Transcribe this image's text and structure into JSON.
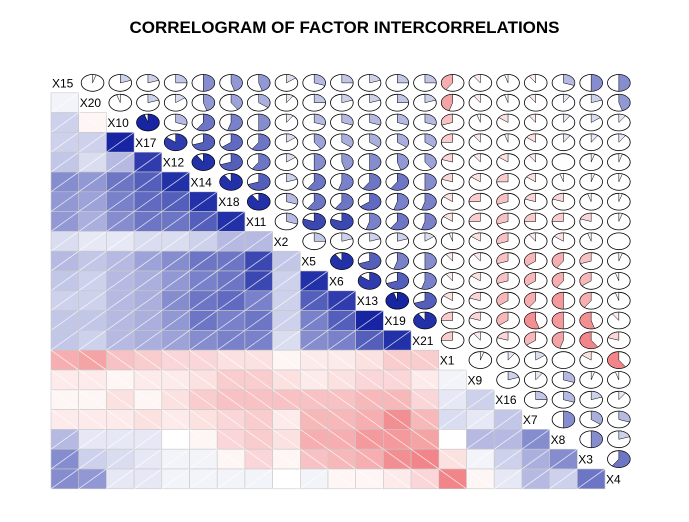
{
  "chart_data": {
    "type": "heatmap",
    "title": "CORRELOGRAM OF FACTOR INTERCORRELATIONS",
    "lower_panel": "shade",
    "upper_panel": "pie",
    "diagonal": "variable names",
    "colors": {
      "positive": "#0b1a9e",
      "negative": "#e8343a",
      "grid": "#c8c8c8"
    },
    "variables": [
      "X15",
      "X20",
      "X10",
      "X17",
      "X12",
      "X14",
      "X18",
      "X11",
      "X2",
      "X5",
      "X6",
      "X13",
      "X19",
      "X21",
      "X1",
      "X9",
      "X16",
      "X7",
      "X8",
      "X3",
      "X4"
    ],
    "matrix": [
      [
        1,
        0.05,
        0.2,
        0.2,
        0.25,
        0.5,
        0.45,
        0.45,
        0.15,
        0.3,
        0.25,
        0.2,
        0.25,
        0.25,
        -0.4,
        -0.1,
        -0.05,
        -0.1,
        0.3,
        0.5,
        0.5
      ],
      [
        0.05,
        1,
        -0.05,
        0.2,
        0.15,
        0.45,
        0.4,
        0.35,
        0.1,
        0.25,
        0.2,
        0.2,
        0.25,
        0.2,
        -0.45,
        -0.1,
        -0.05,
        -0.1,
        0.1,
        0.2,
        0.45
      ],
      [
        0.2,
        -0.05,
        1,
        0.95,
        0.3,
        0.6,
        0.55,
        0.5,
        0.1,
        0.3,
        0.3,
        0.3,
        0.3,
        0.3,
        -0.3,
        -0.05,
        -0.15,
        -0.1,
        0.1,
        0.15,
        0.1
      ],
      [
        0.2,
        0.2,
        0.95,
        1,
        0.85,
        0.7,
        0.65,
        0.6,
        0.15,
        0.4,
        0.35,
        0.35,
        0.35,
        0.35,
        -0.25,
        -0.1,
        -0.05,
        -0.15,
        0.1,
        0.1,
        0.1
      ],
      [
        0.25,
        0.15,
        0.3,
        0.85,
        1,
        0.9,
        0.7,
        0.6,
        0.15,
        0.5,
        0.45,
        0.5,
        0.45,
        0.4,
        -0.2,
        -0.1,
        -0.15,
        -0.1,
        0,
        0.05,
        0.05
      ],
      [
        0.5,
        0.45,
        0.6,
        0.7,
        0.9,
        1,
        0.9,
        0.7,
        0.2,
        0.6,
        0.55,
        0.6,
        0.6,
        0.5,
        -0.2,
        -0.15,
        -0.25,
        -0.15,
        -0.05,
        0.05,
        0.05
      ],
      [
        0.45,
        0.4,
        0.55,
        0.65,
        0.7,
        0.9,
        1,
        0.9,
        0.3,
        0.6,
        0.6,
        0.65,
        0.55,
        0.55,
        -0.15,
        -0.25,
        -0.3,
        -0.2,
        -0.2,
        -0.05,
        0.05
      ],
      [
        0.45,
        0.35,
        0.5,
        0.6,
        0.6,
        0.7,
        0.9,
        1,
        0.3,
        0.8,
        0.8,
        0.55,
        0.6,
        0.55,
        -0.15,
        -0.25,
        -0.3,
        -0.25,
        -0.25,
        -0.2,
        0.05
      ],
      [
        0.15,
        0.1,
        0.1,
        0.15,
        0.15,
        0.2,
        0.3,
        0.3,
        1,
        0.25,
        0.2,
        0.2,
        0.2,
        0.15,
        -0.05,
        -0.15,
        -0.3,
        -0.1,
        -0.15,
        -0.05,
        0
      ],
      [
        0.3,
        0.25,
        0.3,
        0.4,
        0.5,
        0.6,
        0.6,
        0.8,
        0.25,
        1,
        0.9,
        0.7,
        0.55,
        0.5,
        -0.1,
        -0.1,
        -0.3,
        -0.35,
        -0.4,
        -0.3,
        0.05
      ],
      [
        0.25,
        0.2,
        0.3,
        0.35,
        0.45,
        0.55,
        0.6,
        0.8,
        0.2,
        0.9,
        1,
        0.85,
        0.7,
        0.55,
        -0.1,
        -0.15,
        -0.3,
        -0.35,
        -0.4,
        -0.35,
        -0.05
      ],
      [
        0.2,
        0.2,
        0.3,
        0.35,
        0.5,
        0.6,
        0.65,
        0.55,
        0.2,
        0.7,
        0.85,
        1,
        0.95,
        0.7,
        -0.15,
        -0.2,
        -0.35,
        -0.4,
        -0.5,
        -0.4,
        -0.05
      ],
      [
        0.25,
        0.25,
        0.3,
        0.35,
        0.45,
        0.6,
        0.55,
        0.6,
        0.2,
        0.55,
        0.7,
        0.95,
        1,
        0.9,
        -0.25,
        -0.2,
        -0.35,
        -0.55,
        -0.5,
        -0.55,
        -0.1
      ],
      [
        0.25,
        0.2,
        0.3,
        0.35,
        0.4,
        0.5,
        0.55,
        0.55,
        0.15,
        0.5,
        0.55,
        0.7,
        0.9,
        1,
        -0.25,
        -0.1,
        -0.2,
        -0.35,
        -0.45,
        -0.6,
        -0.2
      ],
      [
        -0.4,
        -0.45,
        -0.3,
        -0.25,
        -0.2,
        -0.2,
        -0.15,
        -0.15,
        -0.05,
        -0.1,
        -0.1,
        -0.15,
        -0.25,
        -0.25,
        1,
        0.05,
        0.1,
        0.15,
        0,
        -0.15,
        -0.6
      ],
      [
        -0.1,
        -0.1,
        -0.05,
        -0.1,
        -0.1,
        -0.15,
        -0.25,
        -0.25,
        -0.15,
        -0.1,
        -0.15,
        -0.2,
        -0.2,
        -0.1,
        0.05,
        1,
        0.2,
        0.1,
        0.3,
        0.05,
        -0.05
      ],
      [
        -0.05,
        -0.05,
        -0.15,
        -0.05,
        -0.15,
        -0.25,
        -0.3,
        -0.3,
        -0.3,
        -0.3,
        -0.3,
        -0.35,
        -0.35,
        -0.2,
        0.1,
        0.2,
        1,
        0.25,
        0.3,
        0.2,
        0.1
      ],
      [
        -0.1,
        -0.1,
        -0.1,
        -0.15,
        -0.1,
        -0.15,
        -0.2,
        -0.25,
        -0.1,
        -0.35,
        -0.35,
        -0.4,
        -0.55,
        -0.35,
        0.15,
        0.1,
        0.25,
        1,
        0.5,
        0.35,
        0.3
      ],
      [
        0.3,
        0.1,
        0.1,
        0.1,
        0,
        -0.05,
        -0.2,
        -0.25,
        -0.15,
        -0.4,
        -0.4,
        -0.5,
        -0.5,
        -0.45,
        0,
        0.3,
        0.3,
        0.5,
        1,
        0.5,
        0.2
      ],
      [
        0.5,
        0.2,
        0.15,
        0.1,
        0.05,
        0.05,
        -0.05,
        -0.2,
        -0.05,
        -0.3,
        -0.35,
        -0.4,
        -0.55,
        -0.6,
        -0.15,
        0.05,
        0.2,
        0.35,
        0.5,
        1,
        0.6
      ],
      [
        0.5,
        0.45,
        0.1,
        0.1,
        0.05,
        0.05,
        0.05,
        0.05,
        0,
        0.05,
        -0.05,
        -0.05,
        -0.1,
        -0.2,
        -0.6,
        -0.05,
        0.1,
        0.3,
        0.2,
        0.6,
        1
      ]
    ]
  }
}
